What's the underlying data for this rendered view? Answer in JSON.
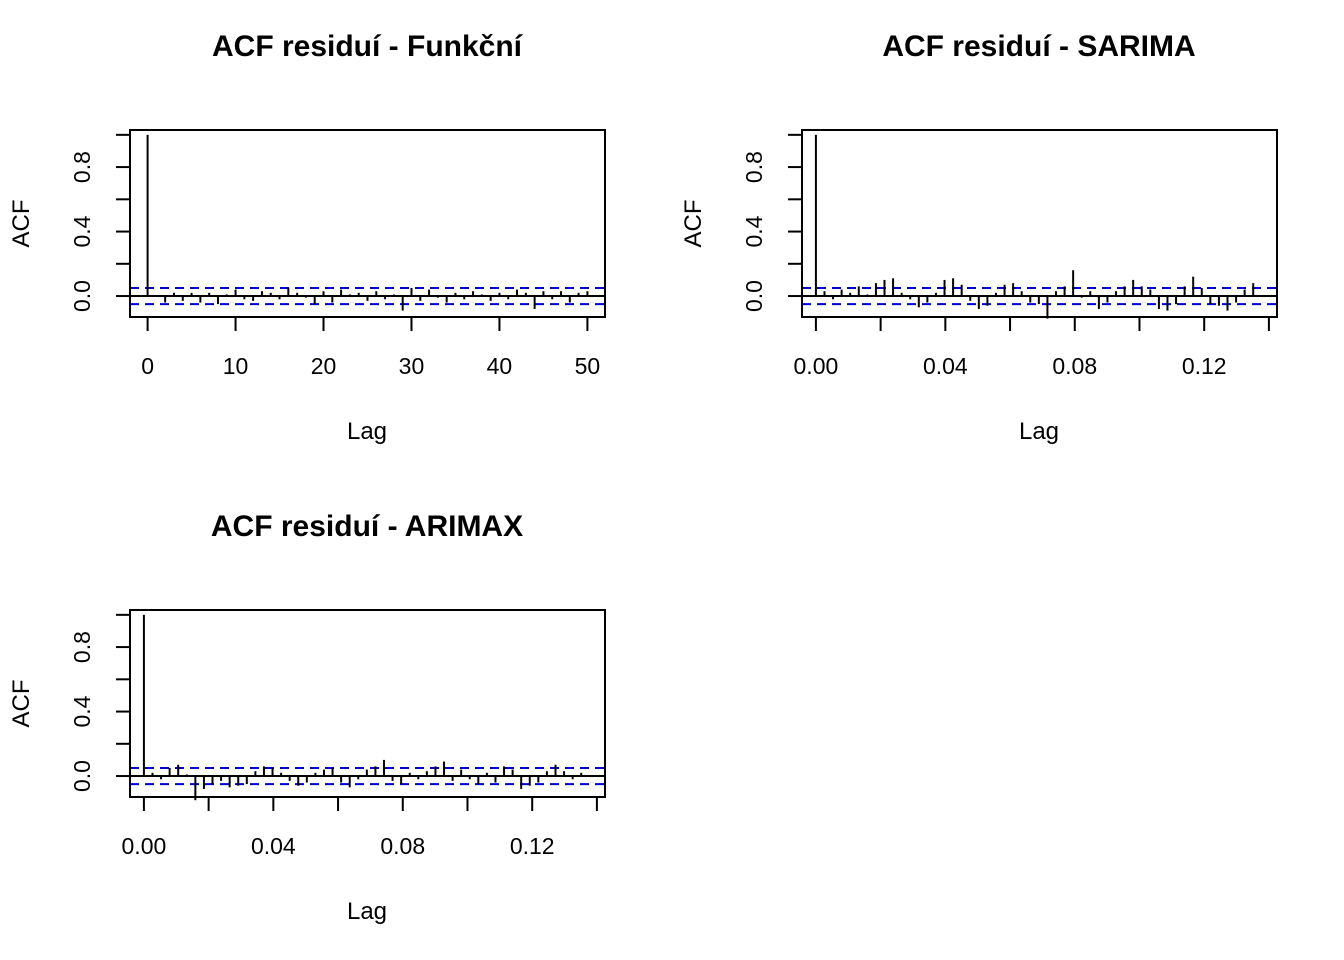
{
  "chart_data": [
    {
      "type": "bar",
      "title": "ACF residuí - Funkční",
      "xlabel": "Lag",
      "ylabel": "ACF",
      "xlim": [
        -2,
        52
      ],
      "ylim": [
        -0.13,
        1.03
      ],
      "xticks": [
        0,
        10,
        20,
        30,
        40,
        50
      ],
      "xtick_labels": [
        "0",
        "10",
        "20",
        "30",
        "40",
        "50"
      ],
      "yticks": [
        0.0,
        0.4,
        0.8
      ],
      "ytick_labels": [
        "0.0",
        "0.4",
        "0.8"
      ],
      "yticks_minor": [
        0.0,
        0.2,
        0.4,
        0.6,
        0.8,
        1.0
      ],
      "ci": 0.05,
      "x": [
        0,
        1,
        2,
        3,
        4,
        5,
        6,
        7,
        8,
        9,
        10,
        11,
        12,
        13,
        14,
        15,
        16,
        17,
        18,
        19,
        20,
        21,
        22,
        23,
        24,
        25,
        26,
        27,
        28,
        29,
        30,
        31,
        32,
        33,
        34,
        35,
        36,
        37,
        38,
        39,
        40,
        41,
        42,
        43,
        44,
        45,
        46,
        47,
        48,
        49,
        50
      ],
      "values": [
        1.0,
        0.0,
        -0.04,
        0.02,
        -0.03,
        0.02,
        -0.04,
        0.02,
        -0.05,
        0.01,
        0.04,
        -0.02,
        -0.03,
        0.03,
        0.02,
        -0.02,
        0.05,
        0.02,
        -0.01,
        -0.05,
        0.03,
        -0.04,
        0.04,
        0.01,
        0.02,
        -0.03,
        0.03,
        -0.02,
        0.01,
        -0.09,
        0.05,
        -0.03,
        0.04,
        -0.01,
        -0.04,
        0.02,
        -0.02,
        0.03,
        0.01,
        -0.03,
        0.02,
        -0.02,
        0.04,
        0.02,
        -0.08,
        0.03,
        -0.02,
        0.03,
        -0.04,
        0.02,
        0.03
      ]
    },
    {
      "type": "bar",
      "title": "ACF residuí - SARIMA",
      "xlabel": "Lag",
      "ylabel": "ACF",
      "xlim": [
        -0.0043,
        0.1425
      ],
      "ylim": [
        -0.13,
        1.03
      ],
      "xticks": [
        0.0,
        0.04,
        0.08,
        0.12
      ],
      "xtick_labels": [
        "0.00",
        "0.04",
        "0.08",
        "0.12"
      ],
      "xticks_minor": [
        0.0,
        0.02,
        0.04,
        0.06,
        0.08,
        0.1,
        0.12,
        0.14
      ],
      "yticks": [
        0.0,
        0.4,
        0.8
      ],
      "ytick_labels": [
        "0.0",
        "0.4",
        "0.8"
      ],
      "yticks_minor": [
        0.0,
        0.2,
        0.4,
        0.6,
        0.8,
        1.0
      ],
      "ci": 0.05,
      "x": [
        0,
        0.00265,
        0.0053,
        0.00795,
        0.0106,
        0.01325,
        0.0159,
        0.01855,
        0.0212,
        0.02385,
        0.0265,
        0.02915,
        0.0318,
        0.03445,
        0.0371,
        0.03975,
        0.0424,
        0.04505,
        0.0477,
        0.05035,
        0.053,
        0.05565,
        0.0583,
        0.06095,
        0.0636,
        0.06625,
        0.0689,
        0.07155,
        0.0742,
        0.07685,
        0.0795,
        0.08215,
        0.0848,
        0.08745,
        0.0901,
        0.09275,
        0.0954,
        0.09805,
        0.1007,
        0.10335,
        0.106,
        0.10865,
        0.1113,
        0.11395,
        0.1166,
        0.11925,
        0.1219,
        0.12455,
        0.1272,
        0.12985,
        0.1325,
        0.13515
      ],
      "values": [
        1.0,
        0.03,
        -0.02,
        0.04,
        0.02,
        0.06,
        0.01,
        0.08,
        0.1,
        0.11,
        0.02,
        -0.02,
        -0.07,
        -0.04,
        0.02,
        0.1,
        0.11,
        0.07,
        -0.03,
        -0.08,
        -0.06,
        0.02,
        0.07,
        0.08,
        0.03,
        -0.04,
        -0.05,
        -0.14,
        0.03,
        0.06,
        0.16,
        -0.01,
        0.03,
        -0.08,
        -0.04,
        0.03,
        0.06,
        0.1,
        0.06,
        0.04,
        -0.08,
        -0.09,
        -0.05,
        0.06,
        0.12,
        0.05,
        -0.05,
        -0.06,
        -0.09,
        -0.04,
        0.04,
        0.08
      ]
    },
    {
      "type": "bar",
      "title": "ACF residuí - ARIMAX",
      "xlabel": "Lag",
      "ylabel": "ACF",
      "xlim": [
        -0.0043,
        0.1425
      ],
      "ylim": [
        -0.13,
        1.03
      ],
      "xticks": [
        0.0,
        0.04,
        0.08,
        0.12
      ],
      "xtick_labels": [
        "0.00",
        "0.04",
        "0.08",
        "0.12"
      ],
      "xticks_minor": [
        0.0,
        0.02,
        0.04,
        0.06,
        0.08,
        0.1,
        0.12,
        0.14
      ],
      "yticks": [
        0.0,
        0.4,
        0.8
      ],
      "ytick_labels": [
        "0.0",
        "0.4",
        "0.8"
      ],
      "yticks_minor": [
        0.0,
        0.2,
        0.4,
        0.6,
        0.8,
        1.0
      ],
      "ci": 0.05,
      "x": [
        0,
        0.00265,
        0.0053,
        0.00795,
        0.0106,
        0.01325,
        0.0159,
        0.01855,
        0.0212,
        0.02385,
        0.0265,
        0.02915,
        0.0318,
        0.03445,
        0.0371,
        0.03975,
        0.0424,
        0.04505,
        0.0477,
        0.05035,
        0.053,
        0.05565,
        0.0583,
        0.06095,
        0.0636,
        0.06625,
        0.0689,
        0.07155,
        0.0742,
        0.07685,
        0.0795,
        0.08215,
        0.0848,
        0.08745,
        0.0901,
        0.09275,
        0.0954,
        0.09805,
        0.1007,
        0.10335,
        0.106,
        0.10865,
        0.1113,
        0.11395,
        0.1166,
        0.11925,
        0.1219,
        0.12455,
        0.1272,
        0.12985,
        0.1325,
        0.13515
      ],
      "values": [
        1.0,
        0.02,
        -0.02,
        0.05,
        0.07,
        0.01,
        -0.15,
        -0.08,
        -0.05,
        -0.03,
        -0.07,
        -0.06,
        -0.05,
        0.03,
        0.06,
        0.05,
        0.02,
        -0.03,
        -0.06,
        -0.04,
        0.02,
        0.04,
        0.05,
        -0.04,
        -0.07,
        -0.02,
        0.04,
        0.06,
        0.1,
        -0.03,
        -0.05,
        0.02,
        -0.02,
        0.03,
        0.06,
        0.09,
        -0.03,
        0.04,
        -0.02,
        -0.05,
        0.02,
        -0.04,
        0.06,
        0.04,
        -0.08,
        -0.06,
        -0.04,
        0.03,
        0.07,
        0.03,
        -0.02,
        0.02
      ]
    }
  ],
  "colors": {
    "ci_line": "#0000CD",
    "axis": "#000000",
    "background": "#FFFFFF"
  }
}
